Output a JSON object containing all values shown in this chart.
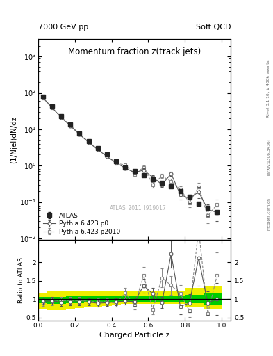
{
  "title": "Momentum fraction z(track jets)",
  "header_left": "7000 GeV pp",
  "header_right": "Soft QCD",
  "ylabel_main": "(1/Njel)dN/dz",
  "ylabel_ratio": "Ratio to ATLAS",
  "xlabel": "Charged Particle z",
  "rivet_label": "Rivet 3.1.10, ≥ 400k events",
  "arxiv_label": "[arXiv:1306.3436]",
  "mcplots_label": "mcplots.cern.ch",
  "watermark": "ATLAS_2011_I919017",
  "ylim_main": [
    0.009,
    3000
  ],
  "ylim_ratio": [
    0.42,
    2.6
  ],
  "xlim": [
    0.0,
    1.05
  ],
  "z_values": [
    0.025,
    0.075,
    0.125,
    0.175,
    0.225,
    0.275,
    0.325,
    0.375,
    0.425,
    0.475,
    0.525,
    0.575,
    0.625,
    0.675,
    0.725,
    0.775,
    0.825,
    0.875,
    0.925,
    0.975
  ],
  "atlas_y": [
    80,
    42,
    23,
    13.5,
    7.8,
    4.8,
    3.1,
    2.0,
    1.3,
    0.9,
    0.7,
    0.55,
    0.42,
    0.33,
    0.27,
    0.2,
    0.14,
    0.09,
    0.07,
    0.052
  ],
  "atlas_yerr": [
    6,
    3,
    1.8,
    1.0,
    0.6,
    0.35,
    0.22,
    0.15,
    0.1,
    0.07,
    0.055,
    0.045,
    0.035,
    0.028,
    0.022,
    0.017,
    0.012,
    0.009,
    0.007,
    0.005
  ],
  "p0_y": [
    75,
    40,
    21,
    12.5,
    7.2,
    4.4,
    2.75,
    1.8,
    1.2,
    0.85,
    0.65,
    0.75,
    0.48,
    0.3,
    0.6,
    0.16,
    0.125,
    0.19,
    0.062,
    0.052
  ],
  "p0_yerr": [
    5,
    3,
    1.5,
    0.9,
    0.5,
    0.32,
    0.2,
    0.13,
    0.09,
    0.06,
    0.055,
    0.085,
    0.055,
    0.042,
    0.085,
    0.042,
    0.032,
    0.065,
    0.022,
    0.022
  ],
  "p2010_y": [
    72,
    39,
    22,
    13.0,
    7.5,
    4.5,
    2.85,
    1.85,
    1.15,
    1.05,
    0.58,
    0.9,
    0.3,
    0.52,
    0.37,
    0.23,
    0.095,
    0.26,
    0.042,
    0.085
  ],
  "p2010_yerr": [
    5,
    3,
    1.5,
    0.9,
    0.5,
    0.32,
    0.2,
    0.13,
    0.09,
    0.1,
    0.062,
    0.105,
    0.052,
    0.072,
    0.062,
    0.042,
    0.022,
    0.072,
    0.016,
    0.032
  ],
  "green_band_lo": [
    0.88,
    0.87,
    0.87,
    0.88,
    0.89,
    0.9,
    0.9,
    0.91,
    0.92,
    0.93,
    0.93,
    0.93,
    0.93,
    0.93,
    0.93,
    0.93,
    0.88,
    0.88,
    0.85,
    0.85
  ],
  "green_band_hi": [
    1.05,
    1.05,
    1.06,
    1.07,
    1.07,
    1.07,
    1.07,
    1.07,
    1.07,
    1.07,
    1.07,
    1.07,
    1.07,
    1.07,
    1.07,
    1.07,
    1.12,
    1.12,
    1.15,
    1.15
  ],
  "yellow_band_lo": [
    0.72,
    0.7,
    0.7,
    0.72,
    0.75,
    0.78,
    0.8,
    0.82,
    0.84,
    0.86,
    0.86,
    0.86,
    0.86,
    0.86,
    0.86,
    0.86,
    0.78,
    0.78,
    0.72,
    0.72
  ],
  "yellow_band_hi": [
    1.18,
    1.2,
    1.22,
    1.22,
    1.22,
    1.22,
    1.22,
    1.22,
    1.22,
    1.22,
    1.22,
    1.22,
    1.22,
    1.22,
    1.22,
    1.22,
    1.3,
    1.3,
    1.35,
    1.35
  ],
  "color_atlas": "#222222",
  "color_p0": "#555555",
  "color_p2010": "#888888",
  "color_green": "#00cc00",
  "color_yellow": "#eeee00",
  "background": "#ffffff"
}
